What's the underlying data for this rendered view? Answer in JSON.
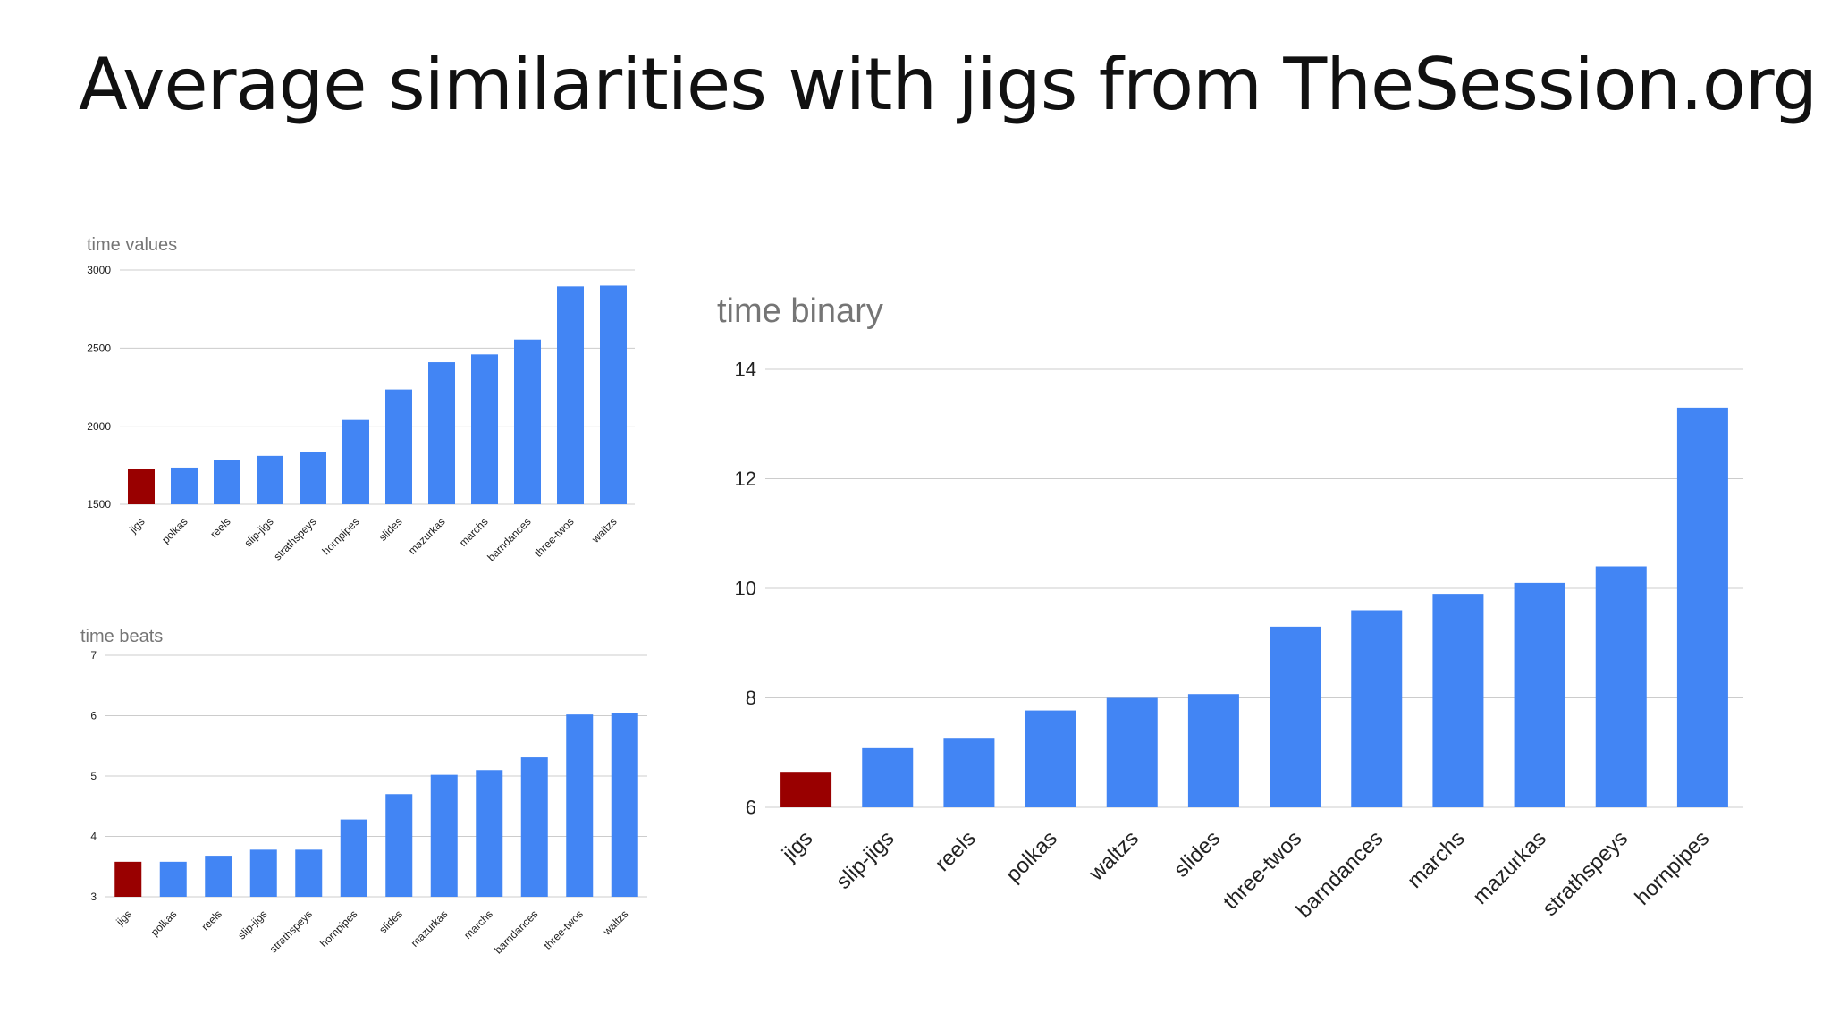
{
  "slide": {
    "title": "Average similarities with jigs from TheSession.org"
  },
  "colors": {
    "highlight": "#990000",
    "bar": "#4285f4",
    "grid": "#cccccc",
    "chart_title": "#757575"
  },
  "chart_data": [
    {
      "id": "time-values",
      "type": "bar",
      "title": "time values",
      "xlabel": "",
      "ylabel": "",
      "categories": [
        "jigs",
        "polkas",
        "reels",
        "slip-jigs",
        "strathspeys",
        "hornpipes",
        "slides",
        "mazurkas",
        "marchs",
        "barndances",
        "three-twos",
        "waltzs"
      ],
      "values": [
        1725,
        1735,
        1785,
        1810,
        1835,
        2040,
        2235,
        2410,
        2460,
        2555,
        2895,
        2900
      ],
      "highlight_index": 0,
      "ylim": [
        1500,
        3000
      ],
      "yticks": [
        1500,
        2000,
        2500,
        3000
      ],
      "grid": true,
      "legend": "none"
    },
    {
      "id": "time-beats",
      "type": "bar",
      "title": "time beats",
      "xlabel": "",
      "ylabel": "",
      "categories": [
        "jigs",
        "polkas",
        "reels",
        "slip-jigs",
        "strathspeys",
        "hornpipes",
        "slides",
        "mazurkas",
        "marchs",
        "barndances",
        "three-twos",
        "waltzs"
      ],
      "values": [
        3.58,
        3.58,
        3.68,
        3.78,
        3.78,
        4.28,
        4.7,
        5.02,
        5.1,
        5.31,
        6.02,
        6.04
      ],
      "highlight_index": 0,
      "ylim": [
        3,
        7
      ],
      "yticks": [
        3,
        4,
        5,
        6,
        7
      ],
      "grid": true,
      "legend": "none"
    },
    {
      "id": "time-binary",
      "type": "bar",
      "title": "time binary",
      "xlabel": "",
      "ylabel": "",
      "categories": [
        "jigs",
        "slip-jigs",
        "reels",
        "polkas",
        "waltzs",
        "slides",
        "three-twos",
        "barndances",
        "marchs",
        "mazurkas",
        "strathspeys",
        "hornpipes"
      ],
      "values": [
        6.65,
        7.08,
        7.27,
        7.77,
        8.0,
        8.07,
        9.3,
        9.6,
        9.9,
        10.1,
        10.4,
        13.3
      ],
      "highlight_index": 0,
      "ylim": [
        6,
        14
      ],
      "yticks": [
        6,
        8,
        10,
        12,
        14
      ],
      "grid": true,
      "legend": "none"
    }
  ]
}
